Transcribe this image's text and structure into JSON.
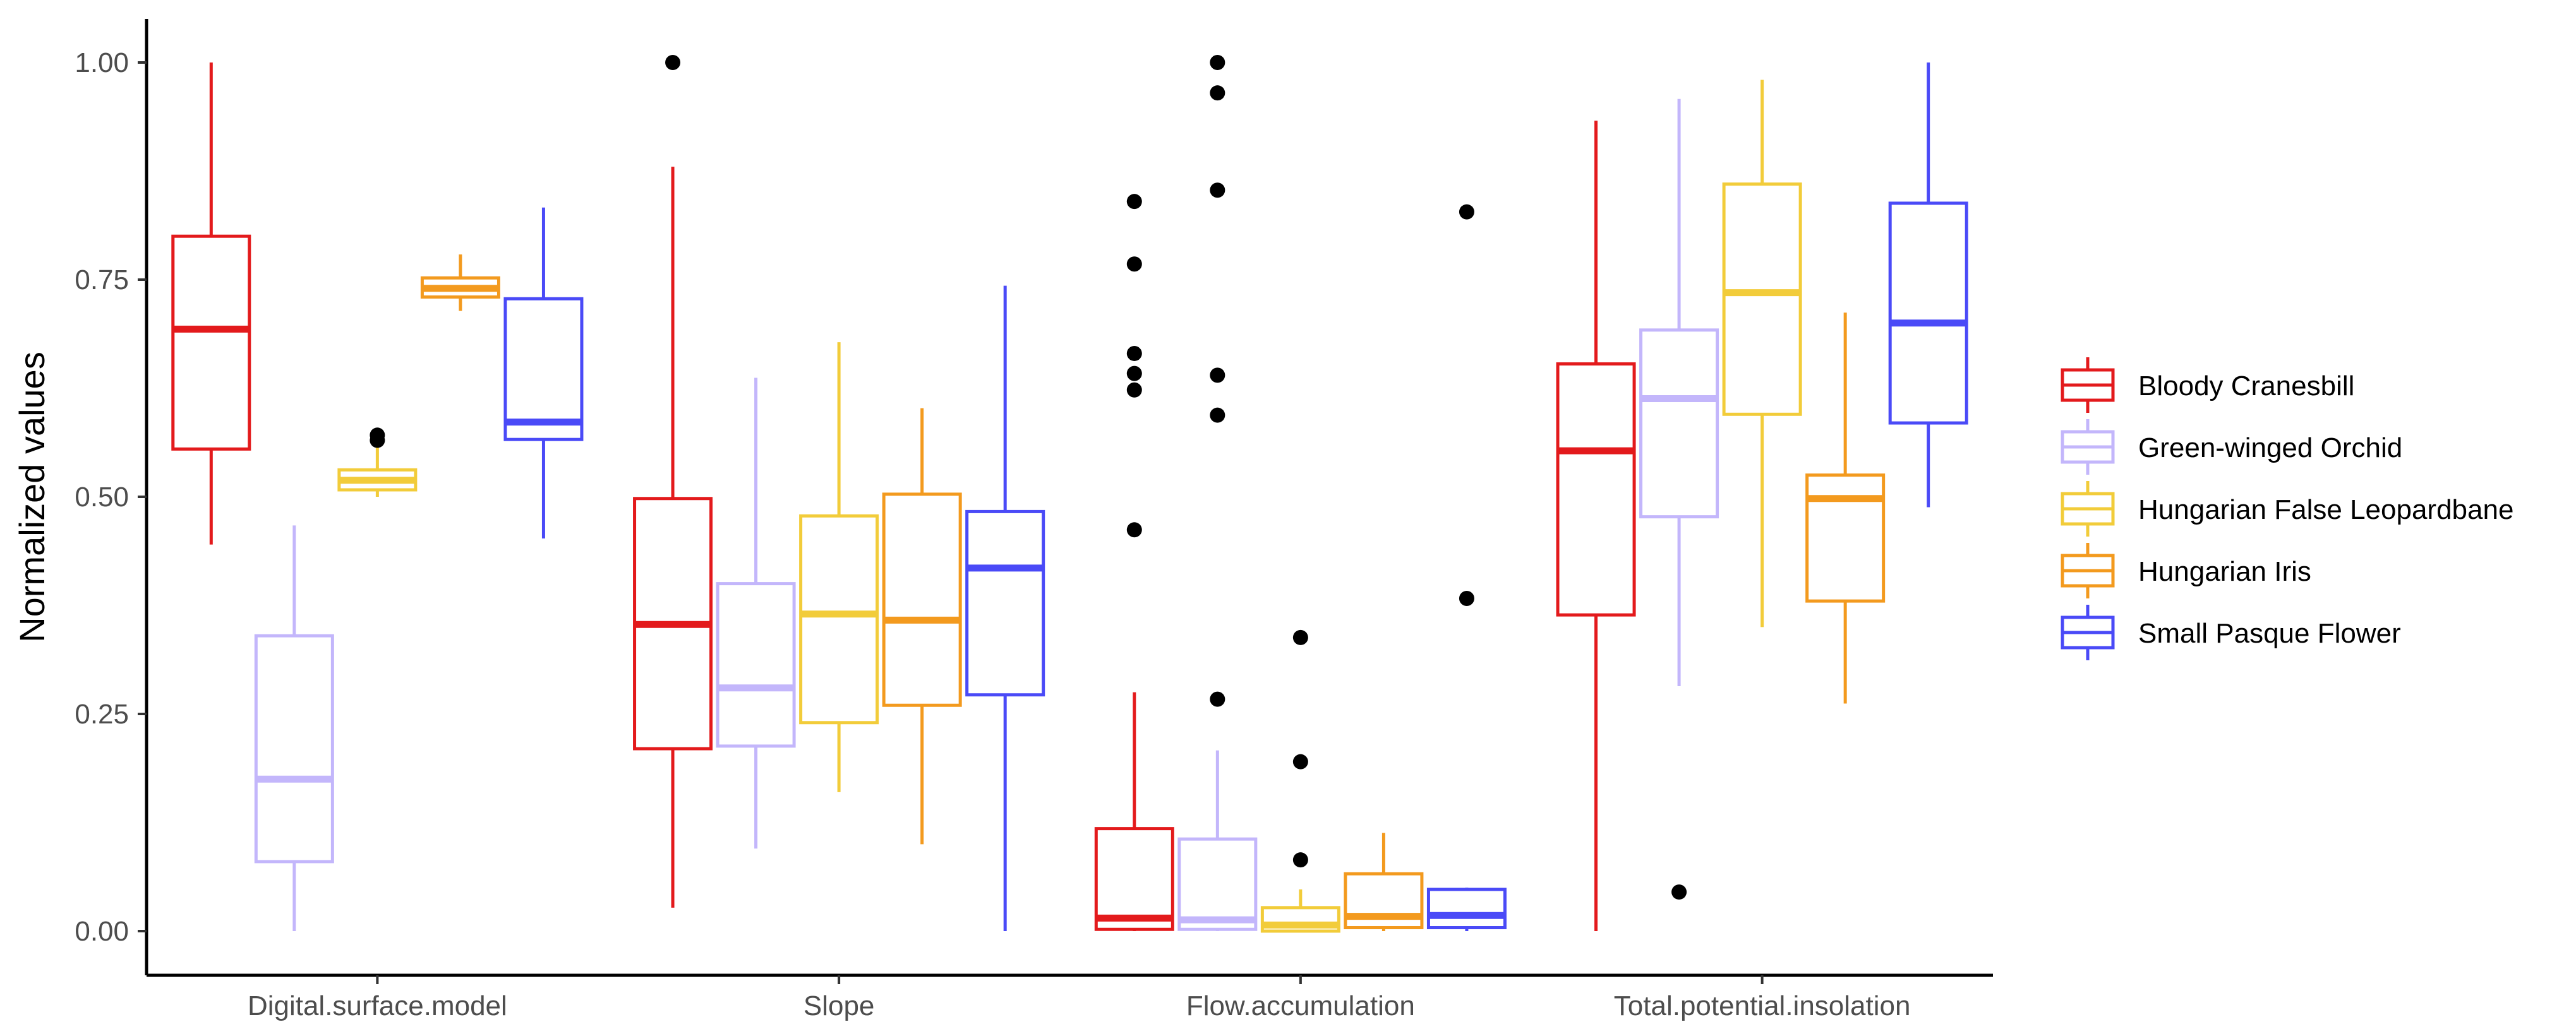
{
  "chart_data": {
    "type": "boxplot",
    "title": "",
    "xlabel": "",
    "ylabel": "Normalized values",
    "ylim": [
      -0.04,
      1.05
    ],
    "yticks": [
      0.0,
      0.25,
      0.5,
      0.75,
      1.0
    ],
    "ytick_labels": [
      "0.00",
      "0.25",
      "0.50",
      "0.75",
      "1.00"
    ],
    "categories": [
      "Digital.surface.model",
      "Slope",
      "Flow.accumulation",
      "Total.potential.insolation"
    ],
    "legend_position": "right",
    "series": [
      {
        "name": "Bloody Cranesbill",
        "color": "#e31a1c",
        "boxes": [
          {
            "low": 0.445,
            "q1": 0.555,
            "median": 0.693,
            "q3": 0.8,
            "high": 1.0,
            "outliers": []
          },
          {
            "low": 0.027,
            "q1": 0.21,
            "median": 0.353,
            "q3": 0.498,
            "high": 0.88,
            "outliers": [
              1.0
            ]
          },
          {
            "low": 0.0,
            "q1": 0.002,
            "median": 0.015,
            "q3": 0.118,
            "high": 0.275,
            "outliers": [
              0.84,
              0.768,
              0.665,
              0.642,
              0.623,
              0.462
            ]
          },
          {
            "low": 0.0,
            "q1": 0.364,
            "median": 0.553,
            "q3": 0.653,
            "high": 0.933,
            "outliers": []
          }
        ]
      },
      {
        "name": "Green-winged Orchid",
        "color": "#c3b6fb",
        "boxes": [
          {
            "low": 0.0,
            "q1": 0.08,
            "median": 0.175,
            "q3": 0.34,
            "high": 0.467,
            "outliers": []
          },
          {
            "low": 0.095,
            "q1": 0.213,
            "median": 0.28,
            "q3": 0.4,
            "high": 0.637,
            "outliers": []
          },
          {
            "low": 0.0,
            "q1": 0.002,
            "median": 0.013,
            "q3": 0.106,
            "high": 0.208,
            "outliers": [
              1.0,
              0.965,
              0.853,
              0.64,
              0.594,
              0.267
            ]
          },
          {
            "low": 0.282,
            "q1": 0.477,
            "median": 0.613,
            "q3": 0.692,
            "high": 0.958,
            "outliers": [
              0.045
            ]
          }
        ]
      },
      {
        "name": "Hungarian False Leopardbane",
        "color": "#f2cc3a",
        "boxes": [
          {
            "low": 0.5,
            "q1": 0.508,
            "median": 0.519,
            "q3": 0.531,
            "high": 0.56,
            "outliers": [
              0.571,
              0.565
            ]
          },
          {
            "low": 0.16,
            "q1": 0.24,
            "median": 0.365,
            "q3": 0.478,
            "high": 0.678,
            "outliers": []
          },
          {
            "low": 0.0,
            "q1": 0.0,
            "median": 0.007,
            "q3": 0.027,
            "high": 0.048,
            "outliers": [
              0.338,
              0.195,
              0.082
            ]
          },
          {
            "low": 0.35,
            "q1": 0.595,
            "median": 0.735,
            "q3": 0.86,
            "high": 0.98,
            "outliers": []
          }
        ]
      },
      {
        "name": "Hungarian Iris",
        "color": "#f39a1e",
        "boxes": [
          {
            "low": 0.714,
            "q1": 0.73,
            "median": 0.74,
            "q3": 0.752,
            "high": 0.779,
            "outliers": []
          },
          {
            "low": 0.1,
            "q1": 0.26,
            "median": 0.358,
            "q3": 0.503,
            "high": 0.602,
            "outliers": []
          },
          {
            "low": 0.0,
            "q1": 0.004,
            "median": 0.017,
            "q3": 0.066,
            "high": 0.113,
            "outliers": []
          },
          {
            "low": 0.262,
            "q1": 0.38,
            "median": 0.498,
            "q3": 0.525,
            "high": 0.712,
            "outliers": []
          }
        ]
      },
      {
        "name": "Small Pasque Flower",
        "color": "#4a4af7",
        "boxes": [
          {
            "low": 0.452,
            "q1": 0.566,
            "median": 0.586,
            "q3": 0.728,
            "high": 0.833,
            "outliers": []
          },
          {
            "low": 0.0,
            "q1": 0.272,
            "median": 0.418,
            "q3": 0.483,
            "high": 0.743,
            "outliers": []
          },
          {
            "low": 0.0,
            "q1": 0.004,
            "median": 0.018,
            "q3": 0.048,
            "high": 0.05,
            "outliers": [
              0.828,
              0.383
            ]
          },
          {
            "low": 0.488,
            "q1": 0.585,
            "median": 0.7,
            "q3": 0.838,
            "high": 1.0,
            "outliers": []
          }
        ]
      }
    ]
  }
}
